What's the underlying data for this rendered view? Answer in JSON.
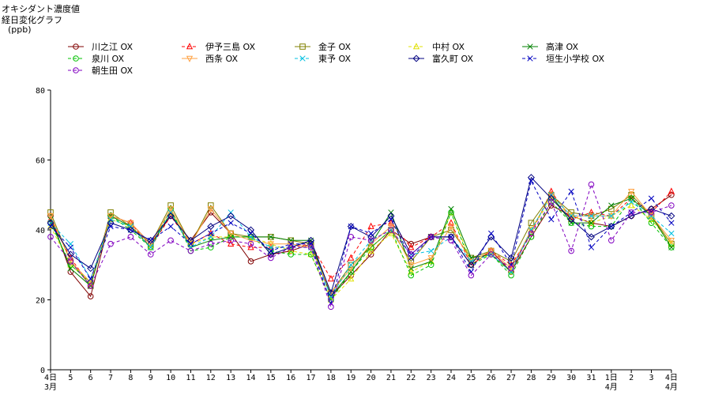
{
  "chart_data": {
    "type": "line",
    "title_lines": [
      "オキシダント濃度値",
      "経日変化グラフ",
      "(ppb)"
    ],
    "xlabel": "",
    "ylabel": "(ppb)",
    "ylim": [
      0,
      80
    ],
    "yticks": [
      "0",
      "20",
      "40",
      "60",
      "80"
    ],
    "grid": false,
    "legend_position": "top",
    "categories": [
      {
        "top": "4日",
        "bottom": "3月"
      },
      {
        "top": "5"
      },
      {
        "top": "6"
      },
      {
        "top": "7"
      },
      {
        "top": "8"
      },
      {
        "top": "9"
      },
      {
        "top": "10"
      },
      {
        "top": "11"
      },
      {
        "top": "12"
      },
      {
        "top": "13"
      },
      {
        "top": "14"
      },
      {
        "top": "15"
      },
      {
        "top": "16"
      },
      {
        "top": "17"
      },
      {
        "top": "18"
      },
      {
        "top": "19"
      },
      {
        "top": "20"
      },
      {
        "top": "21"
      },
      {
        "top": "22"
      },
      {
        "top": "23"
      },
      {
        "top": "24"
      },
      {
        "top": "25"
      },
      {
        "top": "26"
      },
      {
        "top": "27"
      },
      {
        "top": "28"
      },
      {
        "top": "29"
      },
      {
        "top": "30"
      },
      {
        "top": "31"
      },
      {
        "top": "1日",
        "bottom": "4月"
      },
      {
        "top": "2"
      },
      {
        "top": "3"
      },
      {
        "top": "4日",
        "bottom": "4月"
      }
    ],
    "series": [
      {
        "name": "川之江 OX",
        "color": "#800000",
        "marker": "circle",
        "dash": "",
        "values": [
          44,
          28,
          21,
          44,
          42,
          36,
          44,
          37,
          45,
          39,
          31,
          33,
          34,
          36,
          21,
          27,
          33,
          40,
          36,
          38,
          38,
          30,
          34,
          28,
          38,
          47,
          44,
          42,
          41,
          44,
          46,
          50
        ]
      },
      {
        "name": "伊予三島 OX",
        "color": "#ff0000",
        "marker": "triangle",
        "dash": "4,3",
        "values": [
          43,
          32,
          24,
          44,
          42,
          35,
          44,
          36,
          39,
          36,
          35,
          35,
          35,
          36,
          26,
          32,
          41,
          42,
          35,
          38,
          42,
          30,
          34,
          30,
          39,
          51,
          43,
          45,
          44,
          49,
          45,
          51
        ]
      },
      {
        "name": "金子 OX",
        "color": "#808000",
        "marker": "square",
        "dash": "",
        "values": [
          45,
          31,
          24,
          45,
          41,
          36,
          47,
          36,
          47,
          39,
          38,
          38,
          37,
          36,
          22,
          30,
          35,
          40,
          31,
          38,
          40,
          32,
          34,
          31,
          42,
          50,
          45,
          44,
          46,
          50,
          44,
          36
        ]
      },
      {
        "name": "中村 OX",
        "color": "#e0e000",
        "marker": "triangle",
        "dash": "4,3",
        "values": [
          41,
          30,
          25,
          43,
          41,
          35,
          45,
          36,
          38,
          38,
          38,
          36,
          34,
          33,
          20,
          26,
          34,
          39,
          28,
          31,
          45,
          31,
          33,
          28,
          40,
          49,
          44,
          42,
          44,
          47,
          43,
          36
        ]
      },
      {
        "name": "高津 OX",
        "color": "#008000",
        "marker": "x",
        "dash": "",
        "values": [
          43,
          29,
          24,
          44,
          41,
          35,
          45,
          35,
          37,
          38,
          38,
          38,
          37,
          37,
          21,
          28,
          36,
          45,
          29,
          31,
          46,
          32,
          33,
          28,
          40,
          50,
          42,
          42,
          47,
          49,
          44,
          35
        ]
      },
      {
        "name": "泉川 OX",
        "color": "#00c000",
        "marker": "circle",
        "dash": "4,3",
        "values": [
          42,
          30,
          25,
          44,
          40,
          35,
          46,
          34,
          35,
          38,
          38,
          34,
          33,
          33,
          20,
          28,
          35,
          40,
          27,
          30,
          45,
          30,
          33,
          27,
          38,
          48,
          42,
          41,
          41,
          49,
          42,
          35
        ]
      },
      {
        "name": "西条 OX",
        "color": "#ffa040",
        "marker": "triangle-down",
        "dash": "",
        "values": [
          44,
          31,
          25,
          44,
          42,
          36,
          46,
          36,
          46,
          39,
          37,
          36,
          36,
          35,
          22,
          29,
          36,
          41,
          30,
          32,
          41,
          31,
          34,
          29,
          40,
          50,
          44,
          44,
          44,
          51,
          44,
          37
        ]
      },
      {
        "name": "東予 OX",
        "color": "#00c0e0",
        "marker": "x",
        "dash": "4,3",
        "values": [
          42,
          36,
          26,
          43,
          41,
          35,
          45,
          35,
          38,
          45,
          38,
          35,
          35,
          35,
          21,
          30,
          37,
          40,
          33,
          34,
          38,
          31,
          33,
          28,
          40,
          50,
          44,
          44,
          44,
          48,
          44,
          39
        ]
      },
      {
        "name": "富久町 OX",
        "color": "#000080",
        "marker": "diamond",
        "dash": "",
        "values": [
          42,
          33,
          29,
          42,
          40,
          37,
          44,
          37,
          41,
          44,
          40,
          33,
          35,
          37,
          22,
          41,
          38,
          44,
          33,
          38,
          38,
          30,
          38,
          32,
          55,
          49,
          43,
          38,
          41,
          44,
          46,
          44
        ]
      },
      {
        "name": "垣生小学校 OX",
        "color": "#0000c0",
        "marker": "x",
        "dash": "4,3",
        "values": [
          41,
          35,
          26,
          41,
          40,
          37,
          41,
          36,
          39,
          42,
          39,
          34,
          36,
          36,
          19,
          41,
          39,
          43,
          32,
          38,
          38,
          28,
          39,
          30,
          54,
          43,
          51,
          35,
          41,
          45,
          49,
          42
        ]
      },
      {
        "name": "朝生田 OX",
        "color": "#8000c0",
        "marker": "circle",
        "dash": "4,3",
        "values": [
          38,
          31,
          24,
          36,
          38,
          33,
          37,
          34,
          36,
          37,
          36,
          32,
          35,
          35,
          18,
          38,
          37,
          40,
          33,
          38,
          37,
          27,
          33,
          29,
          39,
          48,
          34,
          53,
          37,
          45,
          45,
          47
        ]
      }
    ]
  }
}
